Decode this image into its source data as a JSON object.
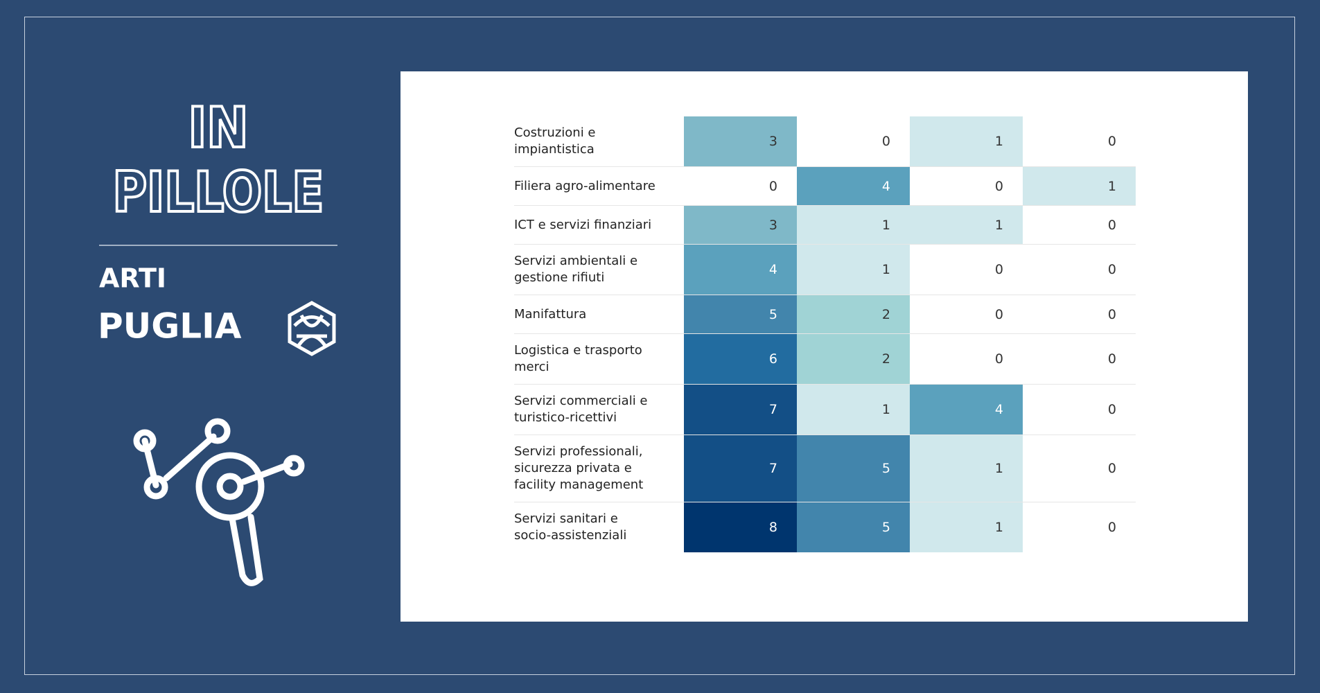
{
  "header": {
    "line1": "IN",
    "line2": "PILLOLE",
    "subtitle1": "ARTI",
    "subtitle2": "PUGLIA"
  },
  "chart_data": {
    "type": "heatmap",
    "categories": [
      "Costruzioni e impiantistica",
      "Filiera agro-alimentare",
      "ICT e servizi finanziari",
      "Servizi ambientali e gestione rifiuti",
      "Manifattura",
      "Logistica e trasporto merci",
      "Servizi commerciali e turistico-ricettivi",
      "Servizi professionali, sicurezza privata e facility management",
      "Servizi sanitari e socio-assistenziali"
    ],
    "series": [
      {
        "values": [
          3,
          0,
          3,
          4,
          5,
          6,
          7,
          7,
          8
        ]
      },
      {
        "values": [
          0,
          4,
          1,
          1,
          2,
          2,
          1,
          5,
          5
        ]
      },
      {
        "values": [
          1,
          0,
          1,
          0,
          0,
          0,
          4,
          1,
          1
        ]
      },
      {
        "values": [
          0,
          1,
          0,
          0,
          0,
          0,
          0,
          0,
          0
        ]
      }
    ],
    "colorscale": [
      "#ffffff",
      "#d0e8ec",
      "#a0d3d5",
      "#7fb8c8",
      "#5ba1bd",
      "#4285ac",
      "#226ca0",
      "#134f86",
      "#00356e"
    ]
  }
}
